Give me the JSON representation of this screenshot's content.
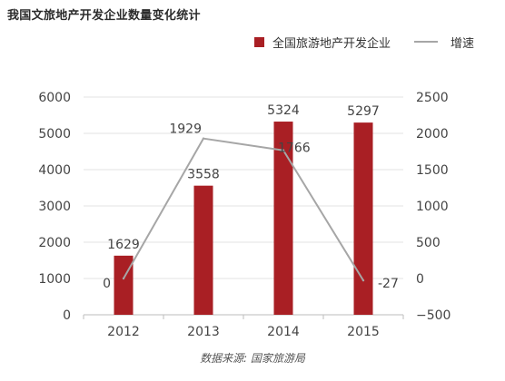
{
  "chart_data": {
    "type": "bar",
    "title": "我国文旅地产开发企业数量变化统计",
    "categories": [
      "2012",
      "2013",
      "2014",
      "2015"
    ],
    "series": [
      {
        "name": "全国旅游地产开发企业",
        "type": "bar",
        "axis": "left",
        "color": "#a91f24",
        "values": [
          1629,
          3558,
          5324,
          5297
        ]
      },
      {
        "name": "增速",
        "type": "line",
        "axis": "right",
        "color": "#a6a6a6",
        "values": [
          0,
          1929,
          1766,
          -27
        ]
      }
    ],
    "y_left": {
      "range": [
        0,
        6000
      ],
      "ticks": [
        "0",
        "1000",
        "2000",
        "3000",
        "4000",
        "5000",
        "6000"
      ]
    },
    "y_right": {
      "range": [
        -500,
        2500
      ],
      "ticks": [
        "−500",
        "0",
        "500",
        "1000",
        "1500",
        "2000",
        "2500"
      ]
    },
    "grid": "horizontal",
    "legend_position": "top-right",
    "source": "数据来源: 国家旅游局"
  }
}
